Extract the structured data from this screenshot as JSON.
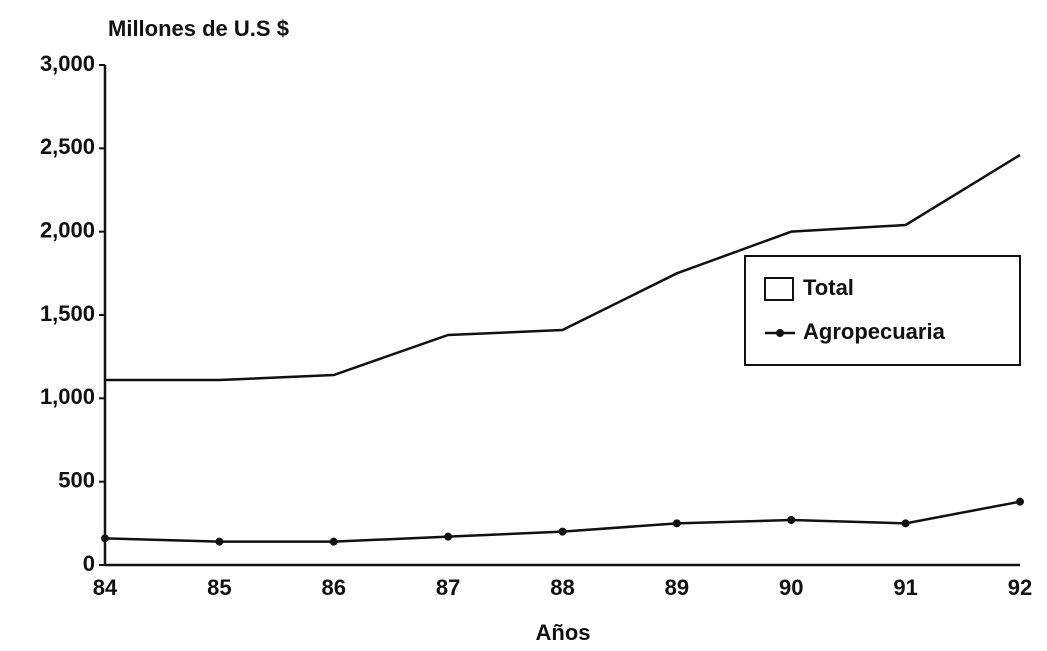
{
  "chart_data": {
    "type": "line",
    "title": "Millones de U.S $",
    "x_label": "Años",
    "categories": [
      "84",
      "85",
      "86",
      "87",
      "88",
      "89",
      "90",
      "91",
      "92"
    ],
    "series": [
      {
        "name": "Total",
        "color": "#111111",
        "markers": false,
        "legend_symbol": "box",
        "values": [
          1110,
          1110,
          1140,
          1380,
          1410,
          1750,
          2000,
          2040,
          2460
        ]
      },
      {
        "name": "Agropecuaria",
        "color": "#111111",
        "markers": true,
        "legend_symbol": "line",
        "values": [
          160,
          140,
          140,
          170,
          200,
          250,
          270,
          250,
          380
        ]
      }
    ],
    "ylim": [
      0,
      3000
    ],
    "yticks": [
      0,
      500,
      {
        "value": 1000,
        "label": "1,000"
      },
      {
        "value": 1500,
        "label": "1,500"
      },
      {
        "value": 2000,
        "label": "2,000"
      },
      {
        "value": 2500,
        "label": "2,500"
      },
      {
        "value": 3000,
        "label": "3,000"
      }
    ],
    "grid": false,
    "legend": "right"
  }
}
